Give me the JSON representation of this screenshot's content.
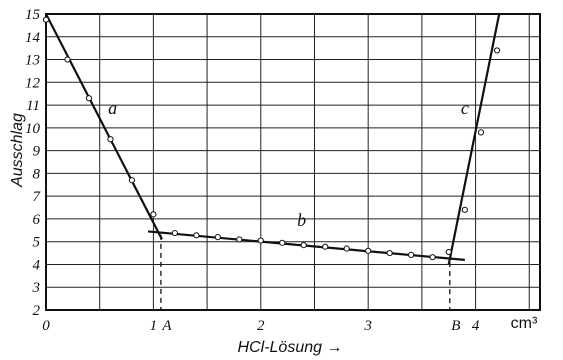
{
  "chart_data": {
    "type": "line",
    "xlabel": "HCl-Lösung →",
    "ylabel": "Ausschlag",
    "x_unit": "cm³",
    "xlim": [
      0,
      4.6
    ],
    "ylim": [
      2,
      15
    ],
    "grid": true,
    "x_ticks": [
      {
        "value": 0,
        "label": "0"
      },
      {
        "value": 1,
        "label": "1"
      },
      {
        "value": 2,
        "label": "2"
      },
      {
        "value": 3,
        "label": "3"
      },
      {
        "value": 4,
        "label": "4"
      }
    ],
    "y_ticks": [
      2,
      3,
      4,
      5,
      6,
      7,
      8,
      9,
      10,
      11,
      12,
      13,
      14,
      15
    ],
    "markers": [
      {
        "label": "A",
        "x": 1.07,
        "y": 5.3
      },
      {
        "label": "B",
        "x": 3.76,
        "y": 4.1
      }
    ],
    "series": [
      {
        "name": "a",
        "line": [
          [
            0,
            15
          ],
          [
            1.08,
            5.1
          ]
        ],
        "points": [
          [
            0.0,
            14.75
          ],
          [
            0.2,
            13.0
          ],
          [
            0.4,
            11.3
          ],
          [
            0.6,
            9.5
          ],
          [
            0.8,
            7.7
          ],
          [
            1.0,
            6.2
          ]
        ]
      },
      {
        "name": "b",
        "line": [
          [
            0.95,
            5.45
          ],
          [
            3.9,
            4.2
          ]
        ],
        "points": [
          [
            1.2,
            5.38
          ],
          [
            1.4,
            5.28
          ],
          [
            1.6,
            5.2
          ],
          [
            1.8,
            5.1
          ],
          [
            2.0,
            5.05
          ],
          [
            2.2,
            4.95
          ],
          [
            2.4,
            4.85
          ],
          [
            2.6,
            4.78
          ],
          [
            2.8,
            4.7
          ],
          [
            3.0,
            4.6
          ],
          [
            3.2,
            4.5
          ],
          [
            3.4,
            4.42
          ],
          [
            3.6,
            4.32
          ],
          [
            3.75,
            4.55
          ]
        ]
      },
      {
        "name": "c",
        "line": [
          [
            3.75,
            4.0
          ],
          [
            4.22,
            15.0
          ]
        ],
        "points": [
          [
            3.9,
            6.4
          ],
          [
            4.05,
            9.8
          ],
          [
            4.2,
            13.4
          ]
        ]
      }
    ]
  }
}
